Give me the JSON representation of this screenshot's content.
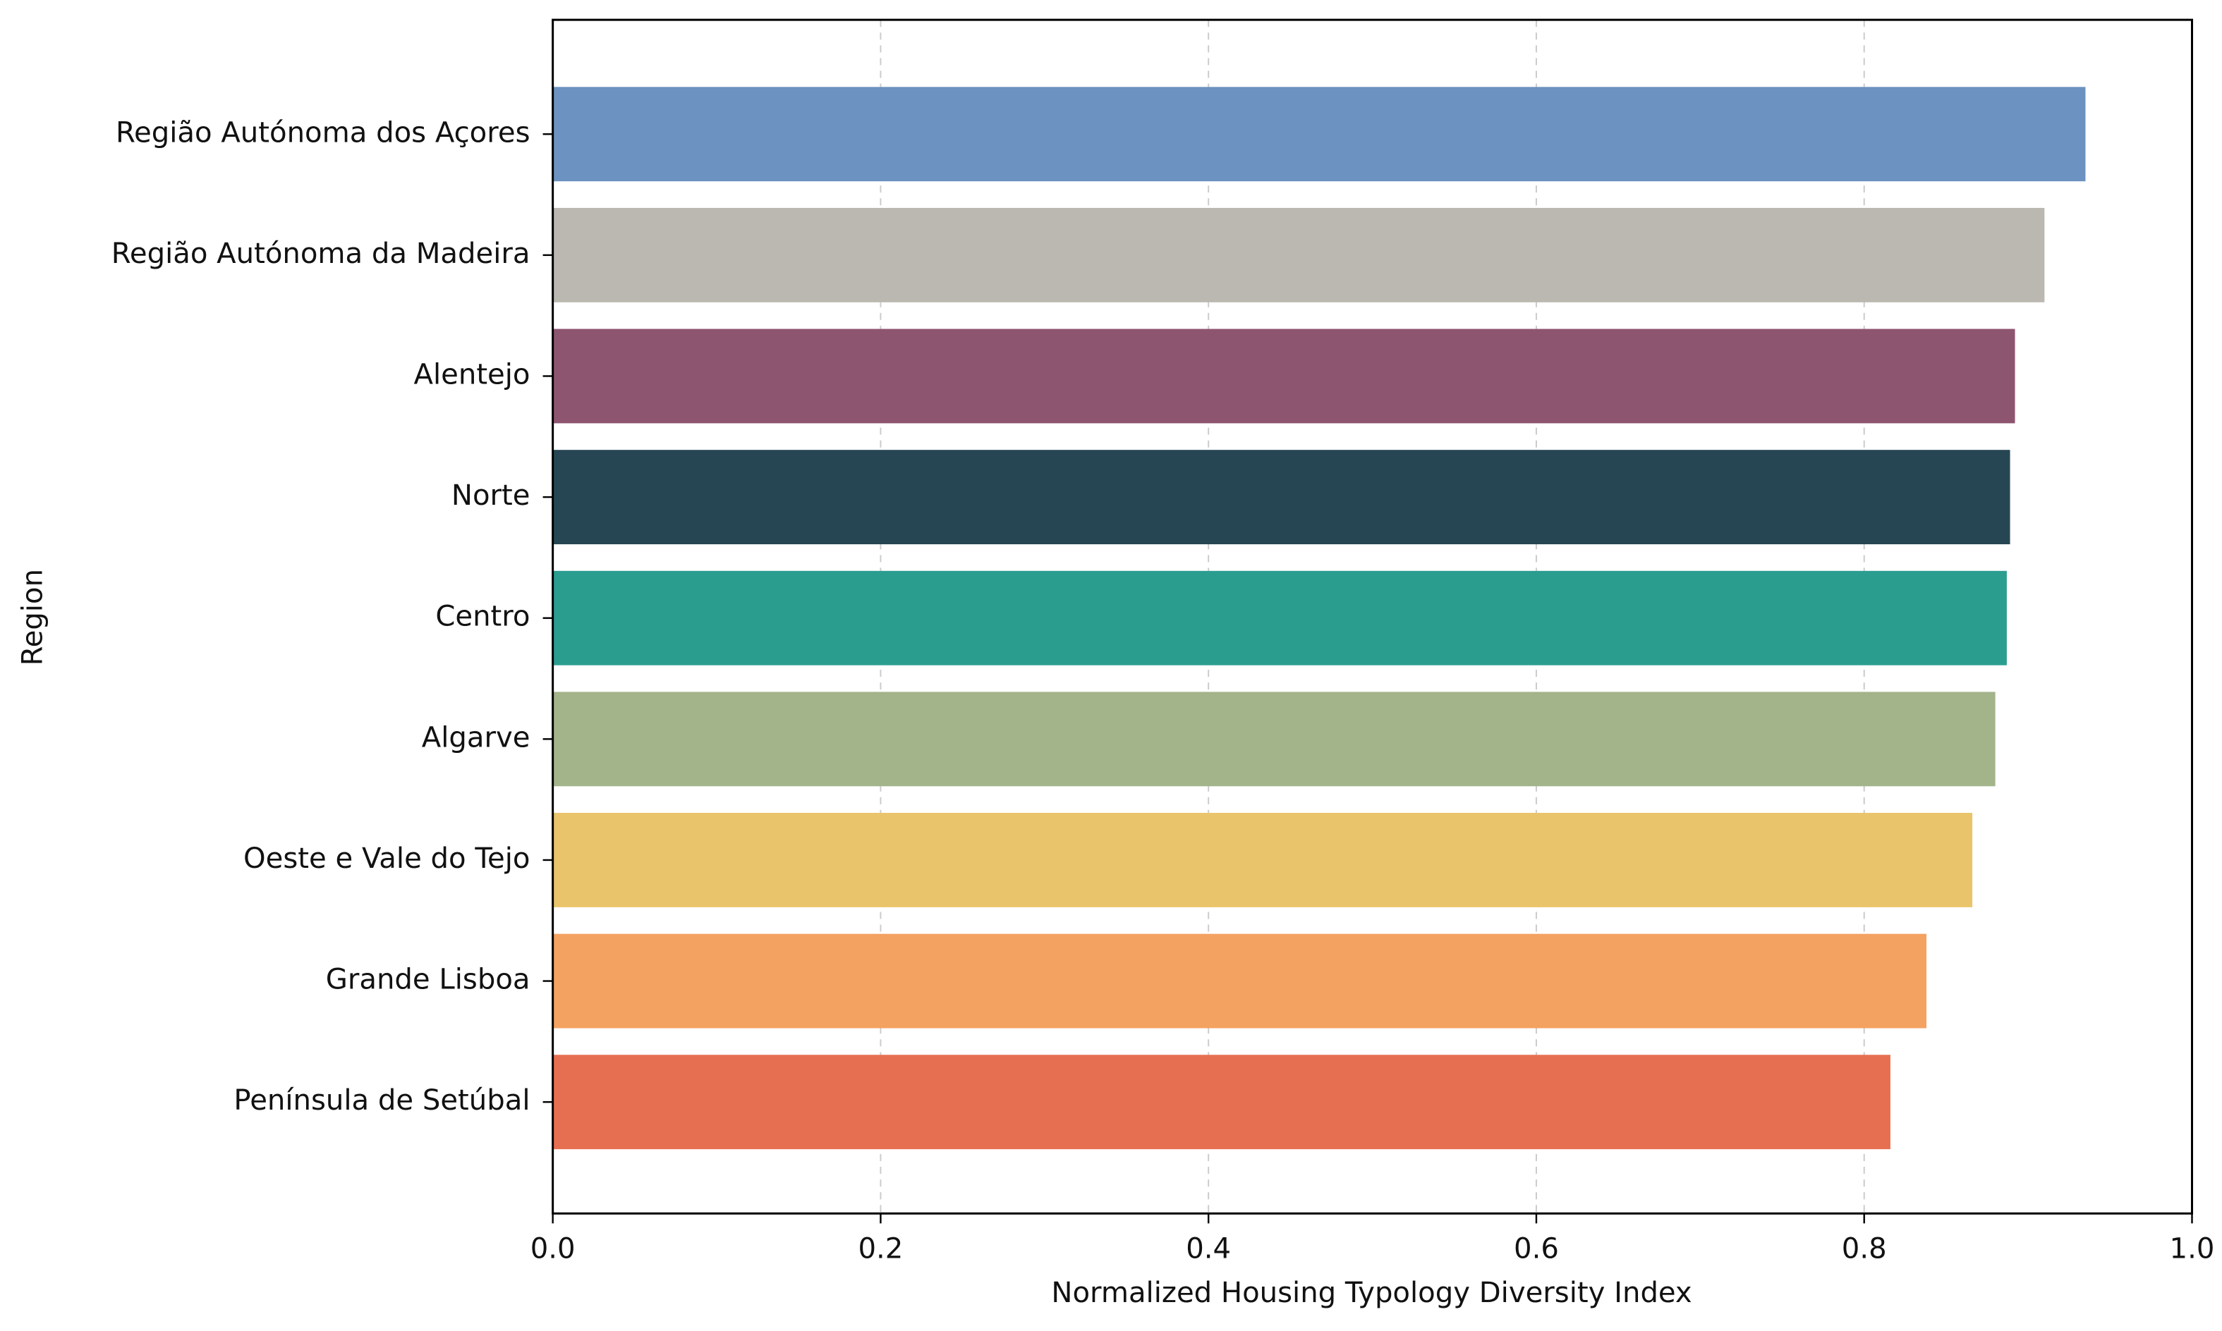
{
  "chart_data": {
    "type": "barh",
    "xlabel": "Normalized Housing Typology Diversity Index",
    "ylabel": "Region",
    "categories": [
      "Região Autónoma dos Açores",
      "Região Autónoma da Madeira",
      "Alentejo",
      "Norte",
      "Centro",
      "Algarve",
      "Oeste e Vale do Tejo",
      "Grande Lisboa",
      "Península de Setúbal"
    ],
    "values": [
      0.935,
      0.91,
      0.892,
      0.889,
      0.887,
      0.88,
      0.866,
      0.838,
      0.816
    ],
    "colors": [
      "#6b92c0",
      "#bbb8b1",
      "#8e5570",
      "#264653",
      "#2a9d8f",
      "#a3b38a",
      "#e9c46a",
      "#f4a261",
      "#e76f51"
    ],
    "xlim": [
      0,
      1
    ],
    "xticks": [
      {
        "value": 0,
        "label": "0.0"
      },
      0.2,
      0.4,
      0.6,
      0.8,
      {
        "value": 1,
        "label": "1.0"
      }
    ],
    "grid": true
  }
}
